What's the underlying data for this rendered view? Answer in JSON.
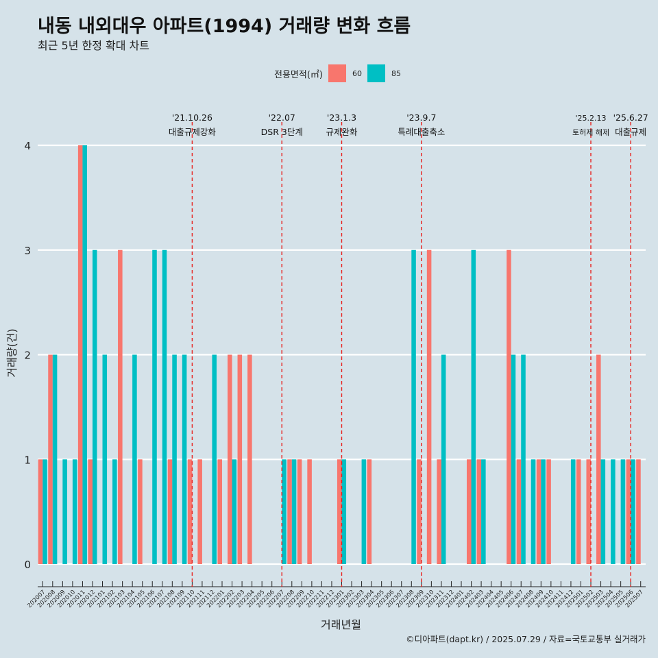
{
  "header": {
    "title": "내동 내외대우 아파트(1994) 거래량 변화 흐름",
    "subtitle": "최근 5년 한정 확대 차트"
  },
  "legend": {
    "title": "전용면적(㎡)",
    "items": [
      {
        "label": "60",
        "color": "#f8766d"
      },
      {
        "label": "85",
        "color": "#00bfc4"
      }
    ]
  },
  "caption": "©디아파트(dapt.kr) / 2025.07.29 / 자료=국토교통부 실거래가",
  "chart_data": {
    "type": "bar",
    "title": "내동 내외대우 아파트(1994) 거래량 변화 흐름",
    "subtitle": "최근 5년 한정 확대 차트",
    "xlabel": "거래년월",
    "ylabel": "거래량(건)",
    "ylim": [
      0,
      4
    ],
    "yticks": [
      0,
      1,
      2,
      3,
      4
    ],
    "grid": true,
    "legend_position": "top",
    "categories": [
      "202007",
      "202008",
      "202009",
      "202010",
      "202011",
      "202012",
      "202101",
      "202102",
      "202103",
      "202104",
      "202105",
      "202106",
      "202107",
      "202108",
      "202109",
      "202110",
      "202111",
      "202112",
      "202201",
      "202202",
      "202203",
      "202204",
      "202205",
      "202206",
      "202207",
      "202208",
      "202209",
      "202210",
      "202211",
      "202212",
      "202301",
      "202302",
      "202303",
      "202304",
      "202305",
      "202306",
      "202307",
      "202308",
      "202309",
      "202310",
      "202311",
      "202312",
      "202401",
      "202402",
      "202403",
      "202404",
      "202405",
      "202406",
      "202407",
      "202408",
      "202409",
      "202410",
      "202411",
      "202412",
      "202501",
      "202502",
      "202503",
      "202504",
      "202505",
      "202506",
      "202507"
    ],
    "series": [
      {
        "name": "60",
        "color": "#f8766d",
        "values": [
          1,
          2,
          0,
          0,
          4,
          1,
          0,
          0,
          3,
          0,
          1,
          0,
          0,
          1,
          0,
          1,
          1,
          0,
          1,
          2,
          2,
          2,
          0,
          0,
          0,
          1,
          1,
          1,
          0,
          0,
          1,
          0,
          0,
          1,
          0,
          0,
          0,
          0,
          1,
          3,
          1,
          0,
          0,
          1,
          1,
          0,
          0,
          3,
          1,
          0,
          1,
          1,
          0,
          0,
          1,
          1,
          2,
          0,
          0,
          1,
          1
        ]
      },
      {
        "name": "85",
        "color": "#00bfc4",
        "values": [
          1,
          2,
          1,
          1,
          4,
          3,
          2,
          1,
          0,
          2,
          0,
          3,
          3,
          2,
          2,
          0,
          0,
          2,
          0,
          1,
          0,
          0,
          0,
          0,
          1,
          1,
          0,
          0,
          0,
          0,
          1,
          0,
          1,
          0,
          0,
          0,
          0,
          3,
          0,
          0,
          2,
          0,
          0,
          3,
          1,
          0,
          0,
          2,
          2,
          1,
          1,
          0,
          0,
          1,
          0,
          0,
          1,
          1,
          1,
          1,
          0
        ]
      }
    ],
    "annotations": [
      {
        "date": "'21.10.26",
        "label": "대출규제강화",
        "position": "202110"
      },
      {
        "date": "'22.07",
        "label": "DSR 3단계",
        "position": "202207"
      },
      {
        "date": "'23.1.3",
        "label": "규제완화",
        "position": "202301"
      },
      {
        "date": "'23.9.7",
        "label": "특례대출축소",
        "position": "202309"
      },
      {
        "date": "'25.2.13",
        "label": "토허제 해제",
        "position": "202502"
      },
      {
        "date": "'25.6.27",
        "label": "대출규제",
        "position": "202506"
      }
    ]
  }
}
